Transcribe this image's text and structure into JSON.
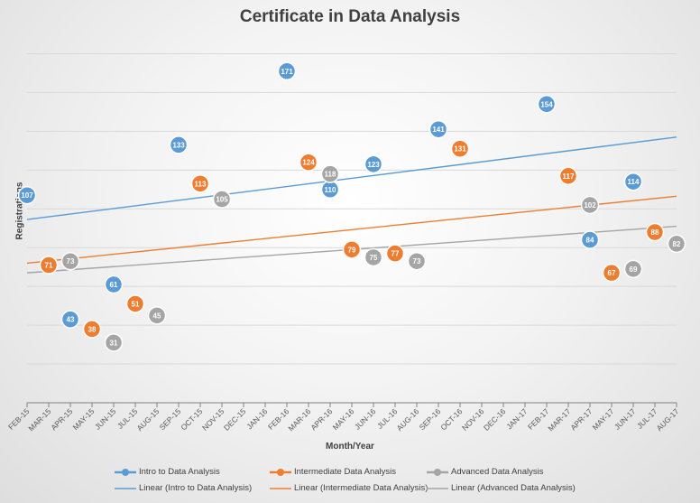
{
  "colors": {
    "intro": "#5b9bd5",
    "intermediate": "#ed7d31",
    "advanced": "#a5a5a5",
    "grid": "#d9d9d9",
    "axis": "#808080"
  },
  "chart_data": {
    "type": "scatter",
    "title": "Certificate in Data Analysis",
    "xlabel": "Month/Year",
    "ylabel": "Registrations",
    "ylim": [
      0,
      190
    ],
    "grid": true,
    "legend_position": "bottom",
    "categories": [
      "FEB-15",
      "MAR-15",
      "APR-15",
      "MAY-15",
      "JUN-15",
      "JUL-15",
      "AUG-15",
      "SEP-15",
      "OCT-15",
      "NOV-15",
      "DEC-15",
      "JAN-16",
      "FEB-16",
      "MAR-16",
      "APR-16",
      "MAY-16",
      "JUN-16",
      "JUL-16",
      "AUG-16",
      "SEP-16",
      "OCT-16",
      "NOV-16",
      "DEC-16",
      "JAN-17",
      "FEB-17",
      "MAR-17",
      "APR-17",
      "MAY-17",
      "JUN-17",
      "JUL-17",
      "AUG-17"
    ],
    "series": [
      {
        "name": "Intro to Data Analysis",
        "key": "intro",
        "points": [
          [
            "FEB-15",
            107
          ],
          [
            "APR-15",
            43
          ],
          [
            "JUN-15",
            61
          ],
          [
            "SEP-15",
            133
          ],
          [
            "NOV-15",
            105
          ],
          [
            "FEB-16",
            171
          ],
          [
            "APR-16",
            110
          ],
          [
            "JUN-16",
            123
          ],
          [
            "SEP-16",
            141
          ],
          [
            "FEB-17",
            154
          ],
          [
            "APR-17",
            84
          ],
          [
            "JUN-17",
            114
          ]
        ]
      },
      {
        "name": "Intermediate Data Analysis",
        "key": "intermediate",
        "points": [
          [
            "MAR-15",
            71
          ],
          [
            "MAY-15",
            38
          ],
          [
            "JUL-15",
            51
          ],
          [
            "OCT-15",
            113
          ],
          [
            "MAR-16",
            124
          ],
          [
            "MAY-16",
            79
          ],
          [
            "JUL-16",
            77
          ],
          [
            "OCT-16",
            131
          ],
          [
            "MAR-17",
            117
          ],
          [
            "MAY-17",
            67
          ],
          [
            "JUL-17",
            88
          ]
        ]
      },
      {
        "name": "Advanced Data Analysis",
        "key": "advanced",
        "points": [
          [
            "APR-15",
            73
          ],
          [
            "JUN-15",
            31
          ],
          [
            "AUG-15",
            45
          ],
          [
            "NOV-15",
            105
          ],
          [
            "APR-16",
            118
          ],
          [
            "JUN-16",
            75
          ],
          [
            "AUG-16",
            73
          ],
          [
            "APR-17",
            102
          ],
          [
            "JUN-17",
            69
          ],
          [
            "AUG-17",
            82
          ]
        ]
      }
    ],
    "trendlines": [
      {
        "name": "Linear (Intro to Data Analysis)",
        "key": "intro",
        "start": [
          "FEB-15",
          94.5
        ],
        "end": [
          "AUG-17",
          137
        ]
      },
      {
        "name": "Linear (Intermediate Data Analysis)",
        "key": "intermediate",
        "start": [
          "FEB-15",
          72
        ],
        "end": [
          "AUG-17",
          106.5
        ]
      },
      {
        "name": "Linear (Advanced Data Analysis)",
        "key": "advanced",
        "start": [
          "FEB-15",
          67
        ],
        "end": [
          "AUG-17",
          91
        ]
      }
    ]
  }
}
